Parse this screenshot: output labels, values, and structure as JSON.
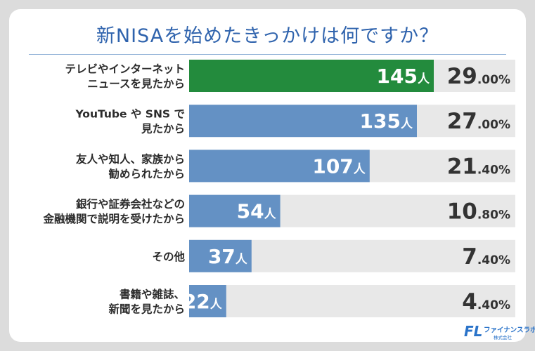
{
  "title": "新NISAを始めたきっかけは何ですか？",
  "logo": {
    "name": "ファイナンスラボ",
    "company": "株式会社",
    "mark": "FL"
  },
  "colors": {
    "highlight": "#238b3d",
    "bar": "#6491c4",
    "track": "#e8e8e8",
    "title": "#2f63ad"
  },
  "chart_data": {
    "type": "bar",
    "orientation": "horizontal",
    "title": "新NISAを始めたきっかけは何ですか？",
    "unit": "人",
    "categories": [
      [
        "テレビやインターネット",
        "ニュースを見たから"
      ],
      [
        "YouTube や SNS で",
        "見たから"
      ],
      [
        "友人や知人、家族から",
        "勧められたから"
      ],
      [
        "銀行や証券会社などの",
        "金融機関で説明を受けたから"
      ],
      [
        "その他"
      ],
      [
        "書籍や雑誌、",
        "新聞を見たから"
      ]
    ],
    "values": [
      145,
      135,
      107,
      54,
      37,
      22
    ],
    "percent_int": [
      "29",
      "27",
      "21",
      "10",
      "7",
      "4"
    ],
    "percent_dec": [
      ".00%",
      ".00%",
      ".40%",
      ".80%",
      ".40%",
      ".40%"
    ],
    "highlight_index": 0,
    "xlim": [
      0,
      145
    ]
  }
}
